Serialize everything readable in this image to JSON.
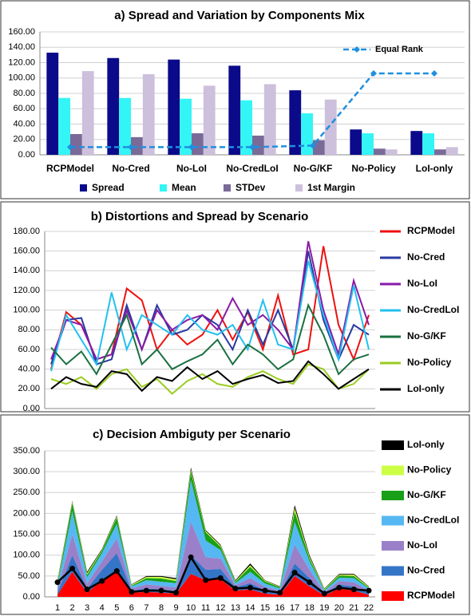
{
  "chart_data": [
    {
      "type": "bar",
      "title": "a)  Spread and Variation by Components Mix",
      "categories": [
        "RCPModel",
        "No-Cred",
        "No-LoI",
        "No-CredLoI",
        "No-G/KF",
        "No-Policy",
        "LoI-only"
      ],
      "series": [
        {
          "name": "Spread",
          "color": "#0a0a8a",
          "values": [
            133,
            126,
            124,
            116,
            84,
            33,
            31
          ]
        },
        {
          "name": "Mean",
          "color": "#33f5f5",
          "values": [
            74,
            74,
            73,
            71,
            54,
            28,
            28
          ]
        },
        {
          "name": "STDev",
          "color": "#7a6a98",
          "values": [
            27,
            23,
            28,
            25,
            19,
            8,
            7
          ]
        },
        {
          "name": "1st Margin",
          "color": "#cdc0dc",
          "values": [
            109,
            105,
            90,
            92,
            72,
            7,
            10
          ]
        }
      ],
      "line_series": {
        "name": "Equal Rank",
        "color": "#1f8fe0",
        "values": [
          10,
          10,
          10,
          10,
          12,
          106,
          106
        ]
      },
      "ylim": [
        0,
        160
      ],
      "yticks": [
        {
          "value": 0,
          "label": "0.00"
        },
        {
          "value": 20,
          "label": "20.00"
        },
        {
          "value": 40,
          "label": "40.00"
        },
        {
          "value": 60,
          "label": "60.00"
        },
        {
          "value": 80,
          "label": "80.00"
        },
        {
          "value": 100,
          "label": "100.00"
        },
        {
          "value": 120,
          "label": "120.00"
        },
        {
          "value": 140,
          "label": "140.00"
        },
        {
          "value": 160,
          "label": "160.00"
        }
      ],
      "grid": true
    },
    {
      "type": "line",
      "title": "b)  Distortions and Spread by Scenario",
      "series": [
        {
          "name": "RCPModel",
          "color": "#ee1111",
          "values": [
            40,
            98,
            85,
            50,
            55,
            122,
            110,
            60,
            80,
            65,
            75,
            100,
            70,
            98,
            60,
            115,
            55,
            60,
            165,
            85,
            50,
            95
          ]
        },
        {
          "name": "No-Cred",
          "color": "#2a3aa0",
          "values": [
            45,
            90,
            92,
            45,
            50,
            105,
            60,
            105,
            75,
            80,
            95,
            85,
            60,
            100,
            65,
            100,
            60,
            160,
            90,
            50,
            85,
            75
          ]
        },
        {
          "name": "No-LoI",
          "color": "#8a1aa8",
          "values": [
            50,
            90,
            85,
            50,
            55,
            100,
            60,
            100,
            80,
            90,
            95,
            80,
            112,
            85,
            95,
            80,
            60,
            170,
            100,
            55,
            130,
            85
          ]
        },
        {
          "name": "No-CredLoI",
          "color": "#22c0f0",
          "values": [
            38,
            95,
            70,
            45,
            118,
            60,
            95,
            85,
            75,
            95,
            80,
            75,
            85,
            60,
            110,
            65,
            60,
            150,
            95,
            50,
            125,
            60
          ]
        },
        {
          "name": "No-G/KF",
          "color": "#1a7040",
          "values": [
            62,
            45,
            58,
            35,
            65,
            95,
            45,
            60,
            40,
            48,
            55,
            70,
            45,
            65,
            55,
            40,
            50,
            105,
            75,
            35,
            50,
            55
          ]
        },
        {
          "name": "No-Policy",
          "color": "#9acc22",
          "values": [
            30,
            25,
            32,
            20,
            35,
            40,
            22,
            30,
            15,
            28,
            35,
            25,
            22,
            32,
            38,
            30,
            25,
            45,
            40,
            20,
            25,
            40
          ]
        },
        {
          "name": "LoI-only",
          "color": "#000000",
          "values": [
            20,
            32,
            25,
            22,
            38,
            35,
            18,
            32,
            28,
            42,
            30,
            38,
            25,
            30,
            34,
            26,
            28,
            48,
            35,
            20,
            30,
            40
          ]
        }
      ],
      "ylim": [
        0,
        180
      ],
      "yticks": [
        {
          "value": 0,
          "label": "0.00"
        },
        {
          "value": 20,
          "label": "20.00"
        },
        {
          "value": 40,
          "label": "40.00"
        },
        {
          "value": 60,
          "label": "60.00"
        },
        {
          "value": 80,
          "label": "80.00"
        },
        {
          "value": 100,
          "label": "100.00"
        },
        {
          "value": 120,
          "label": "120.00"
        },
        {
          "value": 140,
          "label": "140.00"
        },
        {
          "value": 160,
          "label": "160.00"
        },
        {
          "value": 180,
          "label": "180.00"
        }
      ],
      "grid": true
    },
    {
      "type": "area",
      "title": "c)  Decision Ambiguty per Scenario",
      "categories": [
        1,
        2,
        3,
        4,
        5,
        6,
        7,
        8,
        9,
        10,
        11,
        12,
        13,
        14,
        15,
        16,
        17,
        18,
        19,
        20,
        21,
        22
      ],
      "series": [
        {
          "name": "RCPModel",
          "color": "#ff0000",
          "values": [
            5,
            60,
            10,
            40,
            65,
            10,
            12,
            10,
            8,
            55,
            40,
            42,
            15,
            18,
            8,
            5,
            50,
            25,
            3,
            20,
            15,
            5
          ]
        },
        {
          "name": "No-Cred",
          "color": "#3575c8",
          "values": [
            5,
            40,
            10,
            25,
            40,
            5,
            8,
            8,
            7,
            45,
            25,
            25,
            8,
            15,
            8,
            5,
            30,
            20,
            4,
            10,
            10,
            5
          ]
        },
        {
          "name": "No-LoI",
          "color": "#9a80c8",
          "values": [
            8,
            50,
            12,
            20,
            35,
            5,
            10,
            8,
            8,
            80,
            30,
            25,
            5,
            12,
            8,
            5,
            45,
            20,
            4,
            8,
            10,
            5
          ]
        },
        {
          "name": "No-CredLoI",
          "color": "#55b8f2",
          "values": [
            10,
            55,
            15,
            20,
            35,
            5,
            10,
            10,
            10,
            100,
            40,
            20,
            5,
            15,
            8,
            5,
            55,
            20,
            4,
            8,
            10,
            5
          ]
        },
        {
          "name": "No-G/KF",
          "color": "#18a018",
          "values": [
            5,
            20,
            6,
            6,
            15,
            2,
            5,
            8,
            5,
            20,
            20,
            8,
            3,
            12,
            5,
            3,
            25,
            7,
            2,
            5,
            5,
            2
          ]
        },
        {
          "name": "No-Policy",
          "color": "#ccff44",
          "values": [
            4,
            3,
            4,
            2,
            3,
            2,
            3,
            4,
            4,
            5,
            3,
            3,
            2,
            4,
            2,
            1,
            8,
            4,
            2,
            2,
            3,
            2
          ]
        },
        {
          "name": "LoI-only",
          "color": "#000000",
          "values": [
            3,
            2,
            3,
            2,
            2,
            1,
            2,
            2,
            3,
            5,
            2,
            2,
            2,
            4,
            1,
            1,
            7,
            4,
            1,
            2,
            2,
            1
          ]
        }
      ],
      "overlay": {
        "color": "#000000",
        "values": [
          35,
          68,
          18,
          38,
          62,
          12,
          15,
          15,
          10,
          95,
          40,
          45,
          20,
          22,
          15,
          10,
          58,
          35,
          8,
          22,
          18,
          15
        ]
      },
      "ylim": [
        0,
        350
      ],
      "yticks": [
        {
          "value": 0,
          "label": "0.00"
        },
        {
          "value": 50,
          "label": "50.00"
        },
        {
          "value": 100,
          "label": "100.00"
        },
        {
          "value": 150,
          "label": "150.00"
        },
        {
          "value": 200,
          "label": "200.00"
        },
        {
          "value": 250,
          "label": "250.00"
        },
        {
          "value": 300,
          "label": "300.00"
        },
        {
          "value": 350,
          "label": "350.00"
        }
      ],
      "grid": true
    }
  ]
}
